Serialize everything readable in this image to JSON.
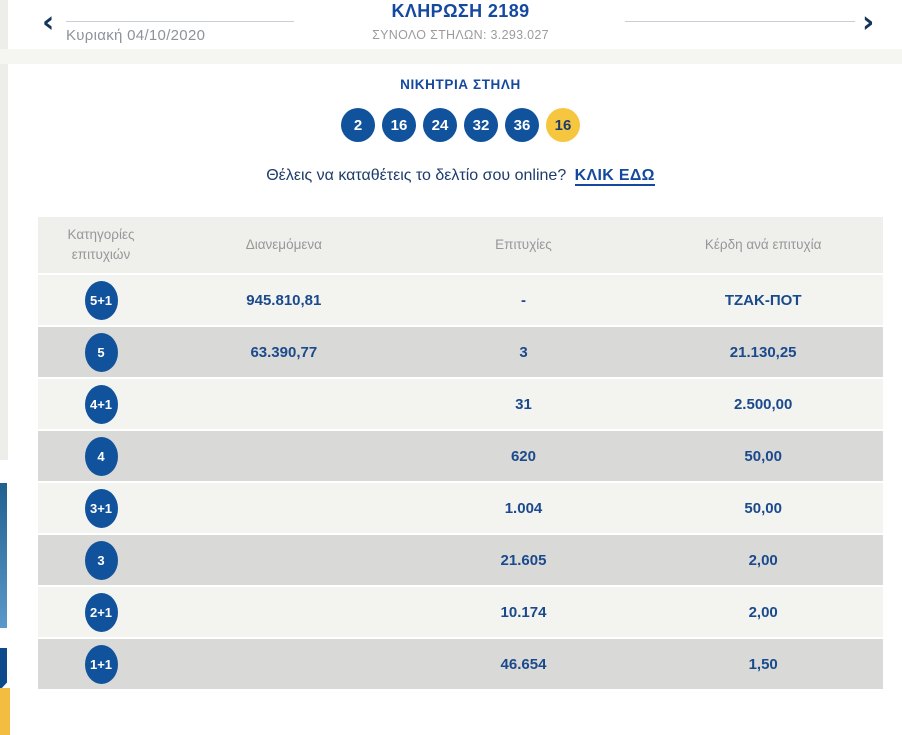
{
  "header": {
    "prev_arrow": "‹",
    "next_arrow": "›",
    "date": "Κυριακή 04/10/2020",
    "title": "ΚΛΗΡΩΣΗ 2189",
    "subtitle": "ΣΥΝΟΛΟ ΣΤΗΛΩΝ: 3.293.027"
  },
  "winning": {
    "title": "ΝΙΚΗΤΡΙΑ ΣΤΗΛΗ",
    "numbers": [
      "2",
      "16",
      "24",
      "32",
      "36"
    ],
    "joker": "16"
  },
  "cta": {
    "text": "Θέλεις να καταθέτεις το δελτίο σου online?",
    "link_label": "ΚΛΙΚ ΕΔΩ"
  },
  "table": {
    "headers": [
      "Κατηγορίες επιτυχιών",
      "Διανεμόμενα",
      "Επιτυχίες",
      "Κέρδη ανά επιτυχία"
    ],
    "rows": [
      {
        "category": "5+1",
        "distributed": "945.810,81",
        "winners": "-",
        "prize": "ΤΖΑΚ-ΠΟΤ"
      },
      {
        "category": "5",
        "distributed": "63.390,77",
        "winners": "3",
        "prize": "21.130,25"
      },
      {
        "category": "4+1",
        "distributed": "",
        "winners": "31",
        "prize": "2.500,00"
      },
      {
        "category": "4",
        "distributed": "",
        "winners": "620",
        "prize": "50,00"
      },
      {
        "category": "3+1",
        "distributed": "",
        "winners": "1.004",
        "prize": "50,00"
      },
      {
        "category": "3",
        "distributed": "",
        "winners": "21.605",
        "prize": "2,00"
      },
      {
        "category": "2+1",
        "distributed": "",
        "winners": "10.174",
        "prize": "2,00"
      },
      {
        "category": "1+1",
        "distributed": "",
        "winners": "46.654",
        "prize": "1,50"
      }
    ]
  },
  "colors": {
    "brand_blue": "#11529c",
    "title_blue": "#15499e",
    "text_navy": "#1b4a8c",
    "joker_yellow": "#f6c63f",
    "row_light": "#f3f3f0",
    "row_dark": "#d9d9d8",
    "header_gray": "#efefec"
  }
}
